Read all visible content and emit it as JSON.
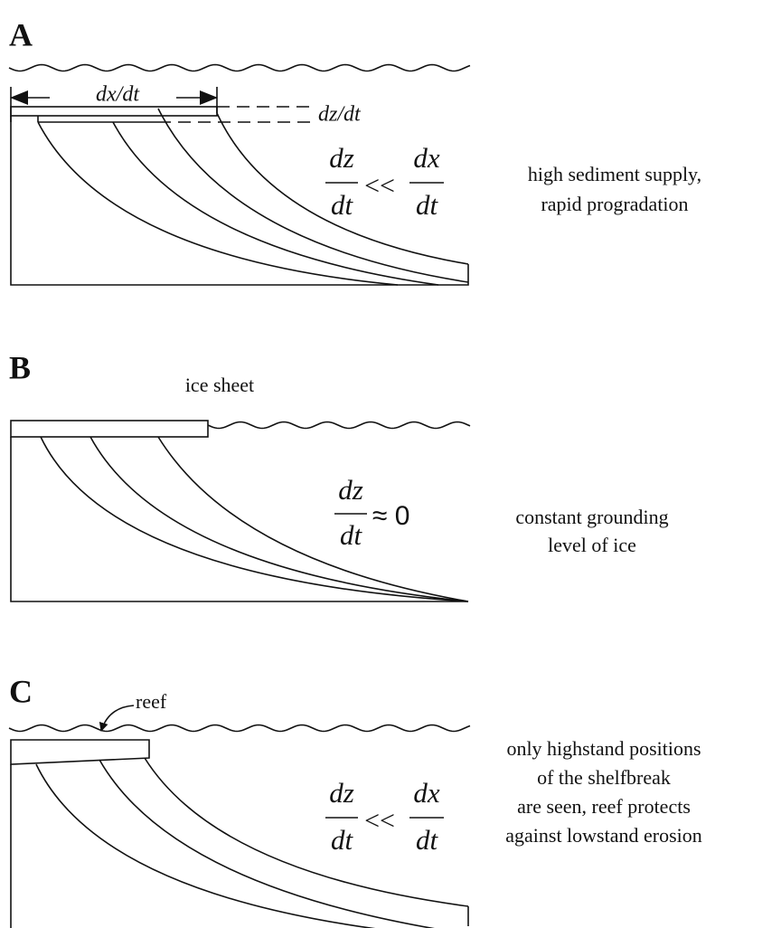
{
  "panels": [
    {
      "label": "A",
      "rate_labels": [
        "dx/dt",
        "dz/dt"
      ],
      "relation": {
        "left_numerator": "dz",
        "left_denominator": "dt",
        "operator": "<<",
        "right_numerator": "dx",
        "right_denominator": "dt"
      },
      "description": [
        "high sediment supply,",
        "rapid progradation"
      ]
    },
    {
      "label": "B",
      "annotation": "ice sheet",
      "relation": {
        "left_numerator": "dz",
        "left_denominator": "dt",
        "operator": "≈ 0"
      },
      "description": [
        "constant grounding",
        "level of ice"
      ]
    },
    {
      "label": "C",
      "annotation": "reef",
      "relation": {
        "left_numerator": "dz",
        "left_denominator": "dt",
        "operator": "<<",
        "right_numerator": "dx",
        "right_denominator": "dt"
      },
      "description": [
        "only highstand positions",
        "of the shelfbreak",
        "are seen, reef protects",
        "against lowstand erosion"
      ]
    }
  ]
}
